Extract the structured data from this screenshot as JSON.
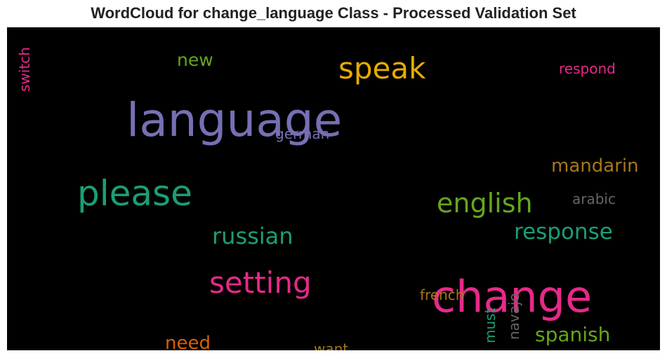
{
  "chart_data": {
    "type": "wordcloud",
    "title": "WordCloud for change_language Class - Processed Validation Set",
    "background": "#000000",
    "words": [
      {
        "text": "language",
        "color": "#7570b3",
        "size": 66,
        "orientation": "horizontal"
      },
      {
        "text": "change",
        "color": "#e7298a",
        "size": 62,
        "orientation": "horizontal"
      },
      {
        "text": "please",
        "color": "#1b9e77",
        "size": 50,
        "orientation": "horizontal"
      },
      {
        "text": "setting",
        "color": "#e7298a",
        "size": 42,
        "orientation": "horizontal"
      },
      {
        "text": "speak",
        "color": "#e6ab02",
        "size": 42,
        "orientation": "horizontal"
      },
      {
        "text": "english",
        "color": "#66a61e",
        "size": 38,
        "orientation": "horizontal"
      },
      {
        "text": "russian",
        "color": "#1b9e77",
        "size": 32,
        "orientation": "horizontal"
      },
      {
        "text": "response",
        "color": "#1b9e77",
        "size": 31,
        "orientation": "horizontal"
      },
      {
        "text": "spanish",
        "color": "#66a61e",
        "size": 28,
        "orientation": "horizontal"
      },
      {
        "text": "mandarin",
        "color": "#a6761d",
        "size": 26,
        "orientation": "horizontal"
      },
      {
        "text": "need",
        "color": "#d95f02",
        "size": 26,
        "orientation": "horizontal"
      },
      {
        "text": "new",
        "color": "#66a61e",
        "size": 25,
        "orientation": "horizontal"
      },
      {
        "text": "german",
        "color": "#7570b3",
        "size": 20,
        "orientation": "horizontal"
      },
      {
        "text": "respond",
        "color": "#e7298a",
        "size": 20,
        "orientation": "horizontal"
      },
      {
        "text": "arabic",
        "color": "#666666",
        "size": 20,
        "orientation": "horizontal"
      },
      {
        "text": "french",
        "color": "#a6761d",
        "size": 20,
        "orientation": "horizontal"
      },
      {
        "text": "want",
        "color": "#a6761d",
        "size": 20,
        "orientation": "horizontal"
      },
      {
        "text": "switch",
        "color": "#e7298a",
        "size": 20,
        "orientation": "vertical"
      },
      {
        "text": "must",
        "color": "#1b9e77",
        "size": 20,
        "orientation": "vertical"
      },
      {
        "text": "navajo",
        "color": "#666666",
        "size": 20,
        "orientation": "vertical"
      }
    ]
  }
}
